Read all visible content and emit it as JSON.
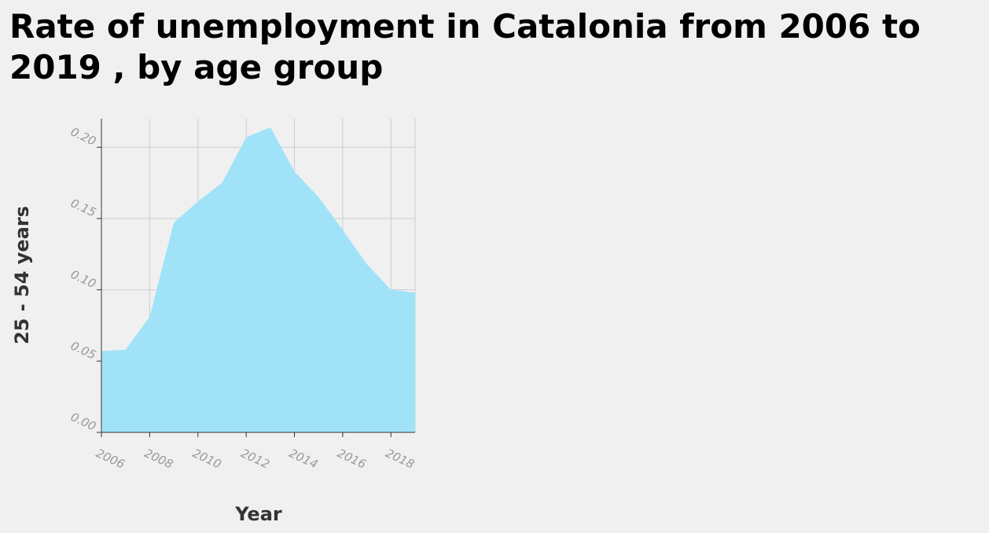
{
  "chart_data": {
    "type": "area",
    "title": "Rate of unemployment in Catalonia from 2006 to 2019 , by age group",
    "xlabel": "Year",
    "ylabel": "25 - 54 years",
    "xlim": [
      2006,
      2019
    ],
    "ylim": [
      0,
      0.22
    ],
    "x_ticks": [
      "2006",
      "2008",
      "2010",
      "2012",
      "2014",
      "2016",
      "2018"
    ],
    "y_ticks": [
      "0.00",
      "0.05",
      "0.10",
      "0.15",
      "0.20"
    ],
    "grid": true,
    "colors": {
      "fill": "#a0e3f8",
      "grid": "#cccccc",
      "tick": "#999999"
    },
    "x": [
      2006,
      2007,
      2008,
      2009,
      2010,
      2011,
      2012,
      2013,
      2014,
      2015,
      2016,
      2017,
      2018,
      2019
    ],
    "values": [
      0.057,
      0.058,
      0.081,
      0.147,
      0.162,
      0.175,
      0.207,
      0.214,
      0.183,
      0.165,
      0.142,
      0.118,
      0.1,
      0.098
    ]
  }
}
